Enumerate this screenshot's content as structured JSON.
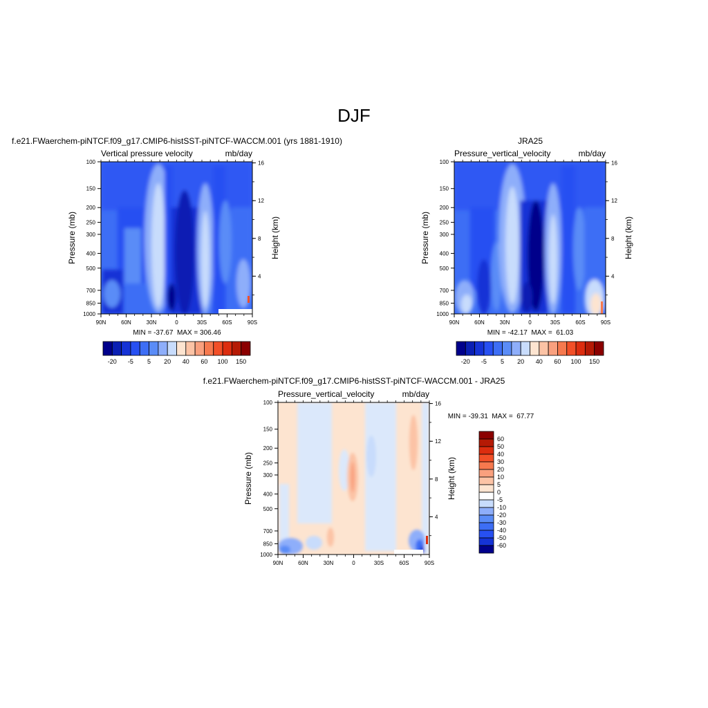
{
  "page_title": "DJF",
  "chart_data": [
    {
      "type": "heatmap",
      "panel_title": "f.e21.FWaerchem-piNTCF.f09_g17.CMIP6-histSST-piNTCF-WACCM.001 (yrs 1881-1910)",
      "left_label": "Vertical pressure velocity",
      "right_label": "mb/day",
      "ylabel": "Pressure (mb)",
      "ylabel_right": "Height (km)",
      "x_ticks": [
        "90N",
        "60N",
        "30N",
        "0",
        "30S",
        "60S",
        "90S"
      ],
      "y_ticks": [
        "100",
        "150",
        "200",
        "250",
        "300",
        "400",
        "500",
        "700",
        "850",
        "1000"
      ],
      "height_ticks": [
        "16",
        "12",
        "8",
        "4"
      ],
      "stats": "MIN = -37.67  MAX = 306.46",
      "colorbar": {
        "orientation": "horizontal",
        "labels": [
          "-20",
          "-5",
          "5",
          "20",
          "40",
          "60",
          "100",
          "150"
        ],
        "colors": [
          "#00008b",
          "#0a1fb3",
          "#1533d6",
          "#2750f2",
          "#3d6ef5",
          "#5a8cf7",
          "#8eaefa",
          "#c8dcfc",
          "#fde4d0",
          "#fcc3a5",
          "#f9a07e",
          "#f6794e",
          "#f24f27",
          "#dc2d0f",
          "#b51a05",
          "#8b0000"
        ]
      }
    },
    {
      "type": "heatmap",
      "panel_title": "JRA25",
      "left_label": "Pressure_vertical_velocity",
      "right_label": "mb/day",
      "ylabel": "Pressure (mb)",
      "ylabel_right": "Height (km)",
      "x_ticks": [
        "90N",
        "60N",
        "30N",
        "0",
        "30S",
        "60S",
        "90S"
      ],
      "y_ticks": [
        "100",
        "150",
        "200",
        "250",
        "300",
        "400",
        "500",
        "700",
        "850",
        "1000"
      ],
      "height_ticks": [
        "16",
        "12",
        "8",
        "4"
      ],
      "stats": "MIN = -42.17  MAX =  61.03",
      "colorbar": {
        "orientation": "horizontal",
        "labels": [
          "-20",
          "-5",
          "5",
          "20",
          "40",
          "60",
          "100",
          "150"
        ],
        "colors": [
          "#00008b",
          "#0a1fb3",
          "#1533d6",
          "#2750f2",
          "#3d6ef5",
          "#5a8cf7",
          "#8eaefa",
          "#c8dcfc",
          "#fde4d0",
          "#fcc3a5",
          "#f9a07e",
          "#f6794e",
          "#f24f27",
          "#dc2d0f",
          "#b51a05",
          "#8b0000"
        ]
      }
    },
    {
      "type": "heatmap",
      "panel_title": "f.e21.FWaerchem-piNTCF.f09_g17.CMIP6-histSST-piNTCF-WACCM.001 - JRA25",
      "left_label": "Pressure_vertical_velocity",
      "right_label": "mb/day",
      "ylabel": "Pressure (mb)",
      "ylabel_right": "Height (km)",
      "x_ticks": [
        "90N",
        "60N",
        "30N",
        "0",
        "30S",
        "60S",
        "90S"
      ],
      "y_ticks": [
        "100",
        "150",
        "200",
        "250",
        "300",
        "400",
        "500",
        "700",
        "850",
        "1000"
      ],
      "height_ticks": [
        "16",
        "12",
        "8",
        "4"
      ],
      "stats": "MIN = -39.31  MAX =  67.77",
      "colorbar": {
        "orientation": "vertical",
        "labels": [
          "60",
          "50",
          "40",
          "30",
          "20",
          "10",
          "5",
          "0",
          "-5",
          "-10",
          "-20",
          "-30",
          "-40",
          "-50",
          "-60"
        ],
        "colors": [
          "#8b0000",
          "#b51a05",
          "#dc2d0f",
          "#f24f27",
          "#f6794e",
          "#f9a07e",
          "#fcc3a5",
          "#fde4d0",
          "#ffffff",
          "#c8dcfc",
          "#8eaefa",
          "#5a8cf7",
          "#3d6ef5",
          "#2750f2",
          "#1533d6",
          "#00008b"
        ]
      }
    }
  ]
}
